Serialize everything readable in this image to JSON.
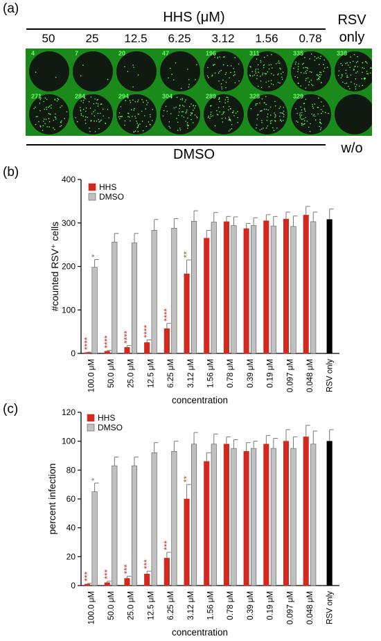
{
  "panel_a": {
    "label": "(a)",
    "header": "HHS (μM)",
    "rsv_label_line1": "RSV",
    "rsv_label_line2": "only",
    "dmso_label": "DMSO",
    "wo_label": "w/o",
    "concentrations": [
      "50",
      "25",
      "12.5",
      "6.25",
      "3.12",
      "1.56",
      "0.78"
    ],
    "top_row_counts": [
      "4",
      "7",
      "20",
      "47",
      "196",
      "311",
      "335",
      "338"
    ],
    "bottom_row_counts": [
      "271",
      "284",
      "294",
      "304",
      "289",
      "328",
      "329"
    ],
    "well_background": "#101a10",
    "plate_color": "#1a8a1a",
    "dot_color": "#5cff5c"
  },
  "chart_data": [
    {
      "type": "bar",
      "panel": "(b)",
      "categories": [
        "100.0 μM",
        "50.0 μM",
        "25.0 μM",
        "12.5 μM",
        "6.25 μM",
        "3.12 μM",
        "1.56 μM",
        "0.78 μM",
        "0.39 μM",
        "0.19 μM",
        "0.097 μM",
        "0.048 μM",
        "RSV only"
      ],
      "series": [
        {
          "name": "HHS",
          "color": "#d2281e",
          "values": [
            2,
            5,
            14,
            25,
            57,
            183,
            265,
            303,
            287,
            305,
            309,
            318,
            null
          ],
          "errors": [
            1,
            2,
            4,
            6,
            12,
            32,
            18,
            12,
            12,
            14,
            16,
            20,
            null
          ],
          "significance": [
            "****",
            "****",
            "****",
            "****",
            "****",
            "**",
            "",
            "",
            "",
            "",
            "",
            "",
            ""
          ]
        },
        {
          "name": "DMSO",
          "color": "#c0c0c0",
          "values": [
            198,
            256,
            254,
            283,
            288,
            304,
            302,
            294,
            294,
            293,
            292,
            303,
            null
          ],
          "errors": [
            18,
            20,
            22,
            25,
            22,
            24,
            22,
            20,
            18,
            22,
            24,
            22,
            null
          ],
          "significance": [
            "*",
            "",
            "",
            "",
            "",
            "",
            "",
            "",
            "",
            "",
            "",
            "",
            ""
          ]
        },
        {
          "name": "RSV only",
          "color": "#000000",
          "values": [
            null,
            null,
            null,
            null,
            null,
            null,
            null,
            null,
            null,
            null,
            null,
            null,
            308
          ],
          "errors": [
            null,
            null,
            null,
            null,
            null,
            null,
            null,
            null,
            null,
            null,
            null,
            null,
            24
          ]
        }
      ],
      "ylabel": "#counted RSV⁺ cells",
      "xlabel": "concentration",
      "ylim": [
        0,
        400
      ],
      "yticks": [
        "0",
        "100",
        "200",
        "300",
        "400"
      ],
      "legend": [
        "HHS",
        "DMSO"
      ],
      "legend_position": "top-left"
    },
    {
      "type": "bar",
      "panel": "(c)",
      "categories": [
        "100.0 μM",
        "50.0 μM",
        "25.0 μM",
        "12.5 μM",
        "6.25 μM",
        "3.12 μM",
        "1.56 μM",
        "0.78 μM",
        "0.39 μM",
        "0.19 μM",
        "0.097 μM",
        "0.048 μM",
        "RSV only"
      ],
      "series": [
        {
          "name": "HHS",
          "color": "#d2281e",
          "values": [
            1,
            2,
            5,
            8,
            19,
            60,
            86,
            98,
            93,
            98,
            100,
            103,
            null
          ],
          "errors": [
            0.5,
            1,
            1.5,
            2,
            4,
            10,
            6,
            5,
            6,
            6,
            8,
            8,
            null
          ],
          "significance": [
            "***",
            "***",
            "***",
            "***",
            "***",
            "**",
            "",
            "",
            "",
            "",
            "",
            "",
            ""
          ]
        },
        {
          "name": "DMSO",
          "color": "#c0c0c0",
          "values": [
            65,
            83,
            83,
            92,
            93,
            98,
            98,
            95,
            95,
            95,
            95,
            98,
            null
          ],
          "errors": [
            6,
            6,
            6,
            7,
            7,
            8,
            7,
            6,
            5,
            7,
            8,
            9,
            null
          ],
          "significance": [
            "*",
            "",
            "",
            "",
            "",
            "",
            "",
            "",
            "",
            "",
            "",
            "",
            ""
          ]
        },
        {
          "name": "RSV only",
          "color": "#000000",
          "values": [
            null,
            null,
            null,
            null,
            null,
            null,
            null,
            null,
            null,
            null,
            null,
            null,
            100
          ],
          "errors": [
            null,
            null,
            null,
            null,
            null,
            null,
            null,
            null,
            null,
            null,
            null,
            null,
            8
          ]
        }
      ],
      "ylabel": "percent infection",
      "xlabel": "concentration",
      "ylim": [
        0,
        120
      ],
      "yticks": [
        "0",
        "20",
        "40",
        "60",
        "80",
        "100",
        "120"
      ],
      "legend": [
        "HHS",
        "DMSO"
      ],
      "legend_position": "top-left"
    }
  ]
}
